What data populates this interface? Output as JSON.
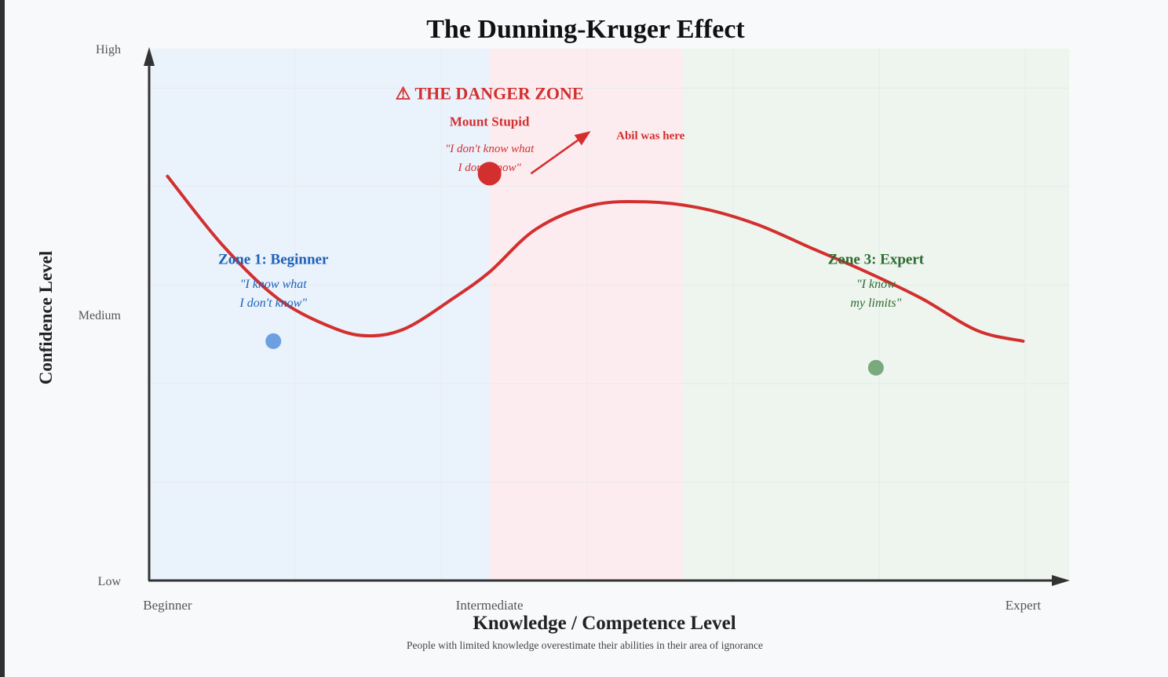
{
  "chart_data": {
    "type": "line",
    "title": "The Dunning-Kruger Effect",
    "subtitle": "People with limited knowledge overestimate their abilities in their area of ignorance",
    "xlabel": "Knowledge / Competence Level",
    "ylabel": "Confidence Level",
    "x_range": [
      0,
      100
    ],
    "y_range": [
      0,
      100
    ],
    "x_ticks": [
      {
        "value": 2,
        "label": "Beginner"
      },
      {
        "value": 37,
        "label": "Intermediate"
      },
      {
        "value": 95,
        "label": "Expert"
      }
    ],
    "y_ticks": [
      {
        "value": 0,
        "label": "Low"
      },
      {
        "value": 50,
        "label": "Medium"
      },
      {
        "value": 100,
        "label": "High"
      }
    ],
    "grid": true,
    "zones": [
      {
        "from": 0,
        "to": 37,
        "color": "#eaf2fc"
      },
      {
        "from": 37,
        "to": 58,
        "color": "#fdecef"
      },
      {
        "from": 58,
        "to": 100,
        "color": "#edf5ee"
      }
    ],
    "series": [
      {
        "color": "#d32f2f",
        "points": [
          [
            2,
            76
          ],
          [
            8,
            63
          ],
          [
            14,
            53
          ],
          [
            20,
            47.5
          ],
          [
            24,
            46
          ],
          [
            28,
            47.5
          ],
          [
            33,
            53
          ],
          [
            37,
            58
          ],
          [
            42,
            66
          ],
          [
            48,
            70.5
          ],
          [
            54,
            71.2
          ],
          [
            60,
            70
          ],
          [
            66,
            67
          ],
          [
            72,
            62.5
          ],
          [
            78,
            58
          ],
          [
            84,
            53
          ],
          [
            90,
            47
          ],
          [
            95,
            45
          ]
        ]
      }
    ],
    "points": [
      {
        "name": "beginner-point",
        "x": 13.5,
        "y": 45,
        "color": "#6ca0e0"
      },
      {
        "name": "mount-stupid-point",
        "x": 37,
        "y": 76.5,
        "color": "#d32f2f"
      },
      {
        "name": "expert-point",
        "x": 79,
        "y": 40,
        "color": "#7aa97d"
      }
    ],
    "annotations": {
      "danger_zone": {
        "text": "⚠ THE DANGER ZONE",
        "x": 37,
        "y": 90.5,
        "color": "#d32f2f"
      },
      "mount_stupid_title": {
        "text": "Mount Stupid",
        "x": 37,
        "y": 85.5,
        "color": "#d32f2f"
      },
      "mount_stupid_quote_1": {
        "text": "\"I don't know what",
        "x": 37,
        "y": 80.5,
        "color": "#d32f2f"
      },
      "mount_stupid_quote_2": {
        "text": "I don't know\"",
        "x": 37,
        "y": 77,
        "color": "#d32f2f"
      },
      "abil_label": {
        "text": "Abil was here",
        "x": 54.5,
        "y": 83,
        "color": "#d32f2f"
      },
      "zone1_title": {
        "text": "Zone 1: Beginner",
        "x": 13.5,
        "y": 59.5,
        "color": "#1e62b8"
      },
      "zone1_quote_1": {
        "text": "\"I know what",
        "x": 13.5,
        "y": 55,
        "color": "#1e62b8"
      },
      "zone1_quote_2": {
        "text": "I don't know\"",
        "x": 13.5,
        "y": 51.5,
        "color": "#1e62b8"
      },
      "zone3_title": {
        "text": "Zone 3: Expert",
        "x": 79,
        "y": 59.5,
        "color": "#2e6b30"
      },
      "zone3_quote_1": {
        "text": "\"I know",
        "x": 79,
        "y": 55,
        "color": "#2e6b30"
      },
      "zone3_quote_2": {
        "text": "my limits\"",
        "x": 79,
        "y": 51.5,
        "color": "#2e6b30"
      }
    },
    "arrow": {
      "from": [
        41.5,
        76.5
      ],
      "to": [
        48,
        84.5
      ],
      "color": "#d32f2f"
    }
  }
}
